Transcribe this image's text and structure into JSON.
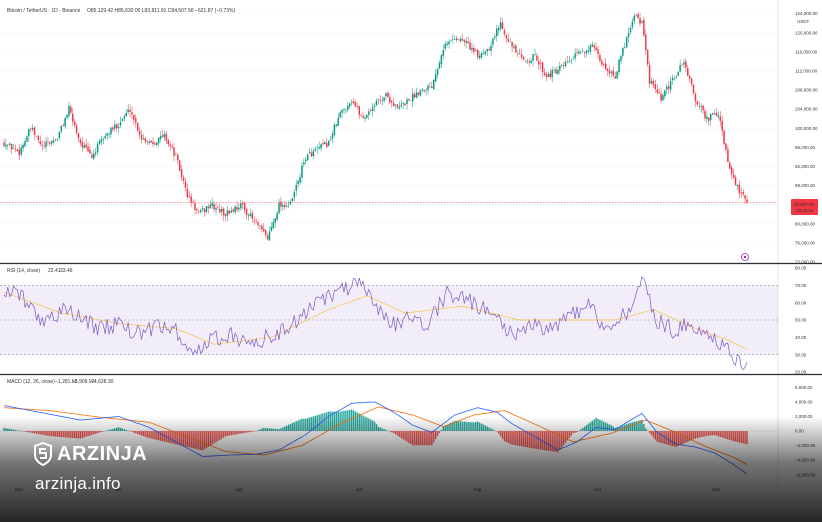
{
  "header": {
    "main_title": "Bitcoin / TetherUS · 1D · Binance",
    "ohlc": "O85,129.42  H85,630.00  L83,811.91  C84,507.56  −621.87 (−0.73%)"
  },
  "price_axis": {
    "currency": "USDT",
    "ticks": [
      "124,000.00",
      "120,000.00",
      "116,000.00",
      "112,000.00",
      "108,000.00",
      "104,000.00",
      "100,000.00",
      "96,000.00",
      "92,000.00",
      "88,000.00",
      "84,000.00",
      "80,000.00",
      "76,000.00",
      "72,000.00"
    ],
    "last_price": "84,507.56",
    "countdown": "15:46:54"
  },
  "rsi": {
    "label": "RSI (14, close)",
    "value1": "22.41",
    "value2": "33.46",
    "ticks": [
      "80.00",
      "70.00",
      "60.00",
      "50.00",
      "40.00",
      "30.00",
      "20.00"
    ]
  },
  "macd": {
    "label": "MACD (12, 26, close)",
    "hist": "−1,281.62",
    "macd": "−5,909.92",
    "signal": "−4,628.30",
    "ticks": [
      "6,000.00",
      "4,000.00",
      "2,000.00",
      "0.00",
      "−2,000.00",
      "−4,000.00",
      "−6,000.00"
    ]
  },
  "time_axis": [
    "Dec",
    "Mar",
    "Apr",
    "Jul",
    "Aug",
    "Oct",
    "Nov",
    "Dec"
  ],
  "brand": {
    "name": "ARZINJA",
    "site": "arzinja.info"
  },
  "colors": {
    "up": "#089981",
    "down": "#f23645",
    "rsi": "#7e57c2",
    "rsi_ma": "#f5c242",
    "macd": "#2962ff",
    "signal": "#ff6d00"
  },
  "chart_data": {
    "type": "candlestick",
    "symbol": "Bitcoin / TetherUS",
    "interval": "1D",
    "ylim": [
      72000,
      126000
    ],
    "close_anchors": [
      [
        0,
        97000
      ],
      [
        8,
        95000
      ],
      [
        14,
        100000
      ],
      [
        20,
        96000
      ],
      [
        28,
        98000
      ],
      [
        34,
        104000
      ],
      [
        40,
        97000
      ],
      [
        46,
        94000
      ],
      [
        52,
        98000
      ],
      [
        60,
        101000
      ],
      [
        66,
        104000
      ],
      [
        72,
        98000
      ],
      [
        78,
        97000
      ],
      [
        84,
        98500
      ],
      [
        90,
        94000
      ],
      [
        96,
        86000
      ],
      [
        102,
        82000
      ],
      [
        108,
        84000
      ],
      [
        116,
        82000
      ],
      [
        124,
        84000
      ],
      [
        132,
        80000
      ],
      [
        138,
        77000
      ],
      [
        144,
        84000
      ],
      [
        150,
        84000
      ],
      [
        158,
        94000
      ],
      [
        164,
        95500
      ],
      [
        170,
        97000
      ],
      [
        176,
        103000
      ],
      [
        182,
        106000
      ],
      [
        188,
        102000
      ],
      [
        194,
        105000
      ],
      [
        200,
        107000
      ],
      [
        206,
        104000
      ],
      [
        212,
        106000
      ],
      [
        218,
        108000
      ],
      [
        224,
        109000
      ],
      [
        230,
        117000
      ],
      [
        236,
        119000
      ],
      [
        242,
        118000
      ],
      [
        248,
        115000
      ],
      [
        254,
        117000
      ],
      [
        260,
        122000
      ],
      [
        266,
        117000
      ],
      [
        272,
        114000
      ],
      [
        278,
        115000
      ],
      [
        284,
        111000
      ],
      [
        290,
        112000
      ],
      [
        296,
        114000
      ],
      [
        302,
        116000
      ],
      [
        308,
        117000
      ],
      [
        314,
        113000
      ],
      [
        320,
        111000
      ],
      [
        326,
        119000
      ],
      [
        330,
        124000
      ],
      [
        334,
        122000
      ],
      [
        338,
        110000
      ],
      [
        344,
        106000
      ],
      [
        350,
        110000
      ],
      [
        356,
        114000
      ],
      [
        362,
        106000
      ],
      [
        368,
        102000
      ],
      [
        374,
        103000
      ],
      [
        380,
        91000
      ],
      [
        386,
        86000
      ],
      [
        389,
        84507
      ]
    ],
    "rsi_anchors": [
      [
        0,
        68
      ],
      [
        10,
        62
      ],
      [
        20,
        50
      ],
      [
        30,
        55
      ],
      [
        40,
        52
      ],
      [
        50,
        45
      ],
      [
        60,
        48
      ],
      [
        70,
        42
      ],
      [
        80,
        46
      ],
      [
        90,
        44
      ],
      [
        100,
        30
      ],
      [
        108,
        38
      ],
      [
        118,
        42
      ],
      [
        128,
        36
      ],
      [
        138,
        40
      ],
      [
        148,
        44
      ],
      [
        158,
        55
      ],
      [
        168,
        62
      ],
      [
        178,
        68
      ],
      [
        186,
        70
      ],
      [
        194,
        60
      ],
      [
        202,
        46
      ],
      [
        212,
        52
      ],
      [
        222,
        48
      ],
      [
        232,
        66
      ],
      [
        242,
        62
      ],
      [
        250,
        58
      ],
      [
        258,
        50
      ],
      [
        266,
        42
      ],
      [
        276,
        48
      ],
      [
        286,
        45
      ],
      [
        296,
        52
      ],
      [
        306,
        58
      ],
      [
        316,
        44
      ],
      [
        326,
        55
      ],
      [
        334,
        72
      ],
      [
        342,
        50
      ],
      [
        350,
        44
      ],
      [
        360,
        48
      ],
      [
        370,
        40
      ],
      [
        380,
        32
      ],
      [
        389,
        22
      ]
    ],
    "rsi_ma_anchors": [
      [
        0,
        66
      ],
      [
        30,
        54
      ],
      [
        60,
        48
      ],
      [
        90,
        45
      ],
      [
        110,
        36
      ],
      [
        140,
        40
      ],
      [
        170,
        56
      ],
      [
        190,
        64
      ],
      [
        210,
        54
      ],
      [
        240,
        58
      ],
      [
        270,
        50
      ],
      [
        300,
        50
      ],
      [
        320,
        50
      ],
      [
        340,
        56
      ],
      [
        360,
        46
      ],
      [
        380,
        38
      ],
      [
        389,
        33
      ]
    ],
    "macd_anchors": [
      [
        0,
        3500
      ],
      [
        20,
        2500
      ],
      [
        40,
        1500
      ],
      [
        60,
        2000
      ],
      [
        76,
        500
      ],
      [
        90,
        -1500
      ],
      [
        104,
        -3500
      ],
      [
        118,
        -3300
      ],
      [
        132,
        -3200
      ],
      [
        144,
        -2600
      ],
      [
        158,
        -500
      ],
      [
        170,
        2000
      ],
      [
        182,
        3800
      ],
      [
        194,
        4000
      ],
      [
        204,
        2600
      ],
      [
        214,
        800
      ],
      [
        224,
        -200
      ],
      [
        236,
        2200
      ],
      [
        248,
        3200
      ],
      [
        258,
        2600
      ],
      [
        266,
        1000
      ],
      [
        276,
        -500
      ],
      [
        290,
        -2600
      ],
      [
        300,
        -1500
      ],
      [
        310,
        500
      ],
      [
        320,
        200
      ],
      [
        328,
        1500
      ],
      [
        334,
        2400
      ],
      [
        342,
        -200
      ],
      [
        352,
        -1800
      ],
      [
        362,
        -2200
      ],
      [
        372,
        -3000
      ],
      [
        382,
        -4600
      ],
      [
        389,
        -5900
      ]
    ],
    "signal_anchors": [
      [
        0,
        3200
      ],
      [
        24,
        2800
      ],
      [
        50,
        1900
      ],
      [
        76,
        1200
      ],
      [
        96,
        -800
      ],
      [
        116,
        -2800
      ],
      [
        136,
        -3300
      ],
      [
        156,
        -2000
      ],
      [
        176,
        1000
      ],
      [
        196,
        3300
      ],
      [
        214,
        2200
      ],
      [
        230,
        600
      ],
      [
        246,
        2200
      ],
      [
        262,
        2800
      ],
      [
        280,
        700
      ],
      [
        298,
        -1500
      ],
      [
        318,
        -300
      ],
      [
        336,
        1500
      ],
      [
        350,
        0
      ],
      [
        368,
        -2200
      ],
      [
        382,
        -3600
      ],
      [
        389,
        -4600
      ]
    ]
  }
}
